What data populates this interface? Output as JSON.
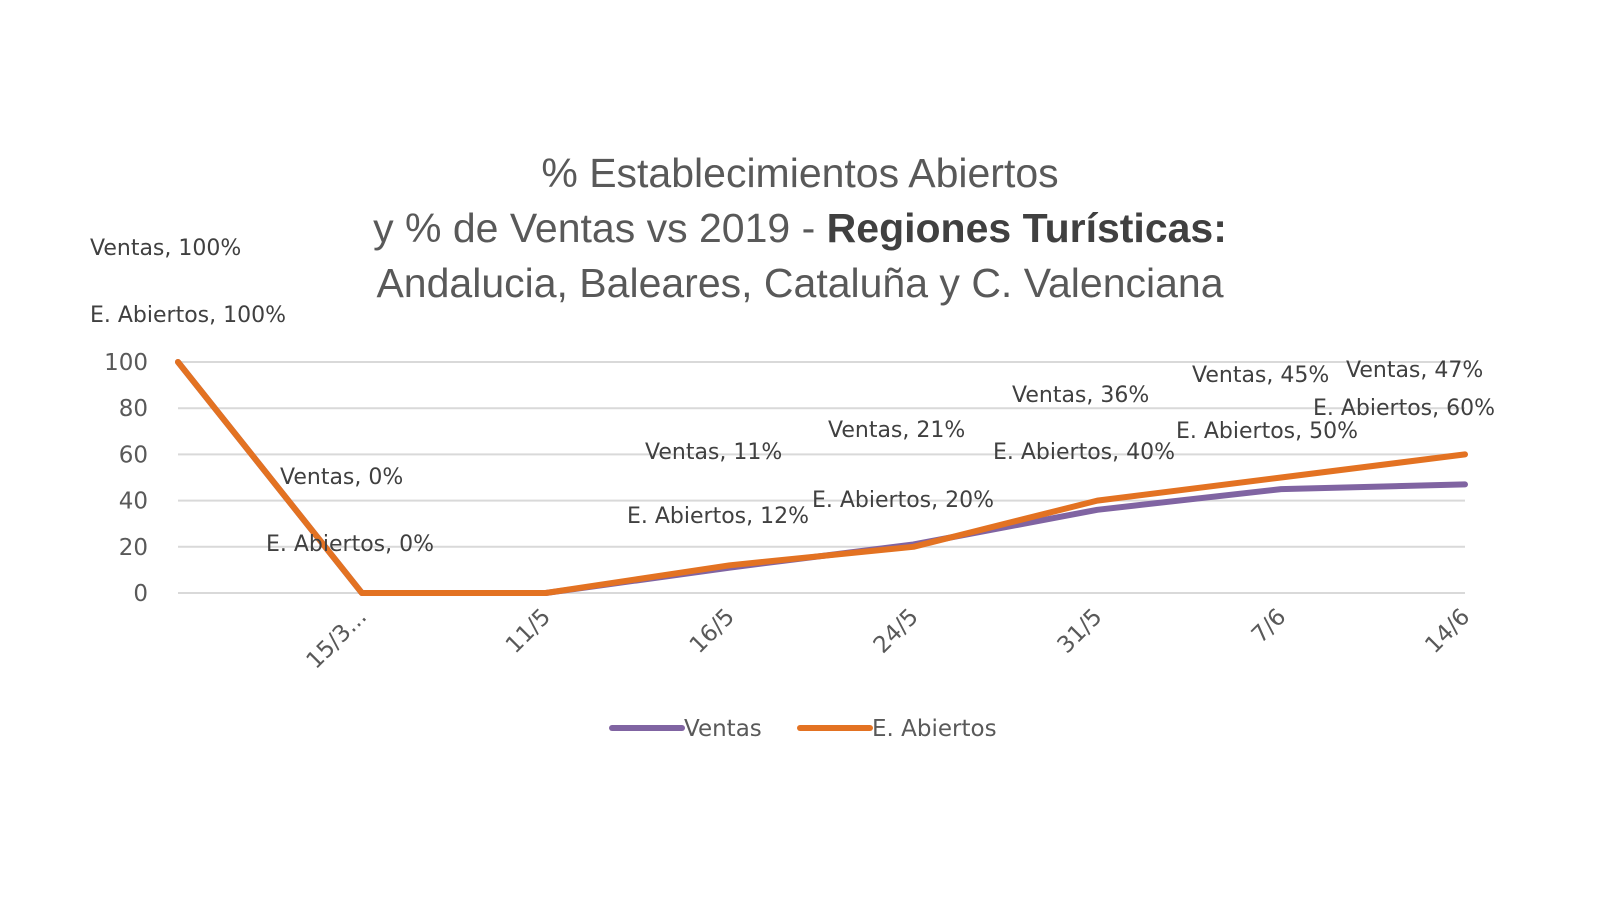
{
  "chart_data": {
    "type": "line",
    "title_lines": [
      "% Establecimientos Abiertos",
      "y % de Ventas vs 2019 -",
      "Regiones Turísticas:",
      "Andalucia, Baleares, Cataluña y C. Valenciana"
    ],
    "categories": [
      "",
      "15/3...",
      "11/5",
      "16/5",
      "24/5",
      "31/5",
      "7/6",
      "14/6"
    ],
    "yticks": [
      "0",
      "20",
      "40",
      "60",
      "80",
      "100"
    ],
    "ylim": [
      0,
      100
    ],
    "grid": true,
    "legend_position": "bottom",
    "series": [
      {
        "name": "Ventas",
        "color": "#8064a2",
        "values": [
          100,
          0,
          0,
          11,
          21,
          36,
          45,
          47
        ],
        "labels": [
          "Ventas, 100%",
          "Ventas, 0%",
          "",
          "Ventas, 11%",
          "Ventas, 21%",
          "Ventas, 36%",
          "Ventas, 45%",
          "Ventas, 47%"
        ]
      },
      {
        "name": "E. Abiertos",
        "color": "#e37222",
        "values": [
          100,
          0,
          0,
          12,
          20,
          40,
          50,
          60
        ],
        "labels": [
          "E. Abiertos, 100%",
          "E. Abiertos, 0%",
          "",
          "E. Abiertos, 12%",
          "E. Abiertos, 20%",
          "E. Abiertos, 40%",
          "E. Abiertos, 50%",
          "E. Abiertos, 60%"
        ]
      }
    ]
  }
}
